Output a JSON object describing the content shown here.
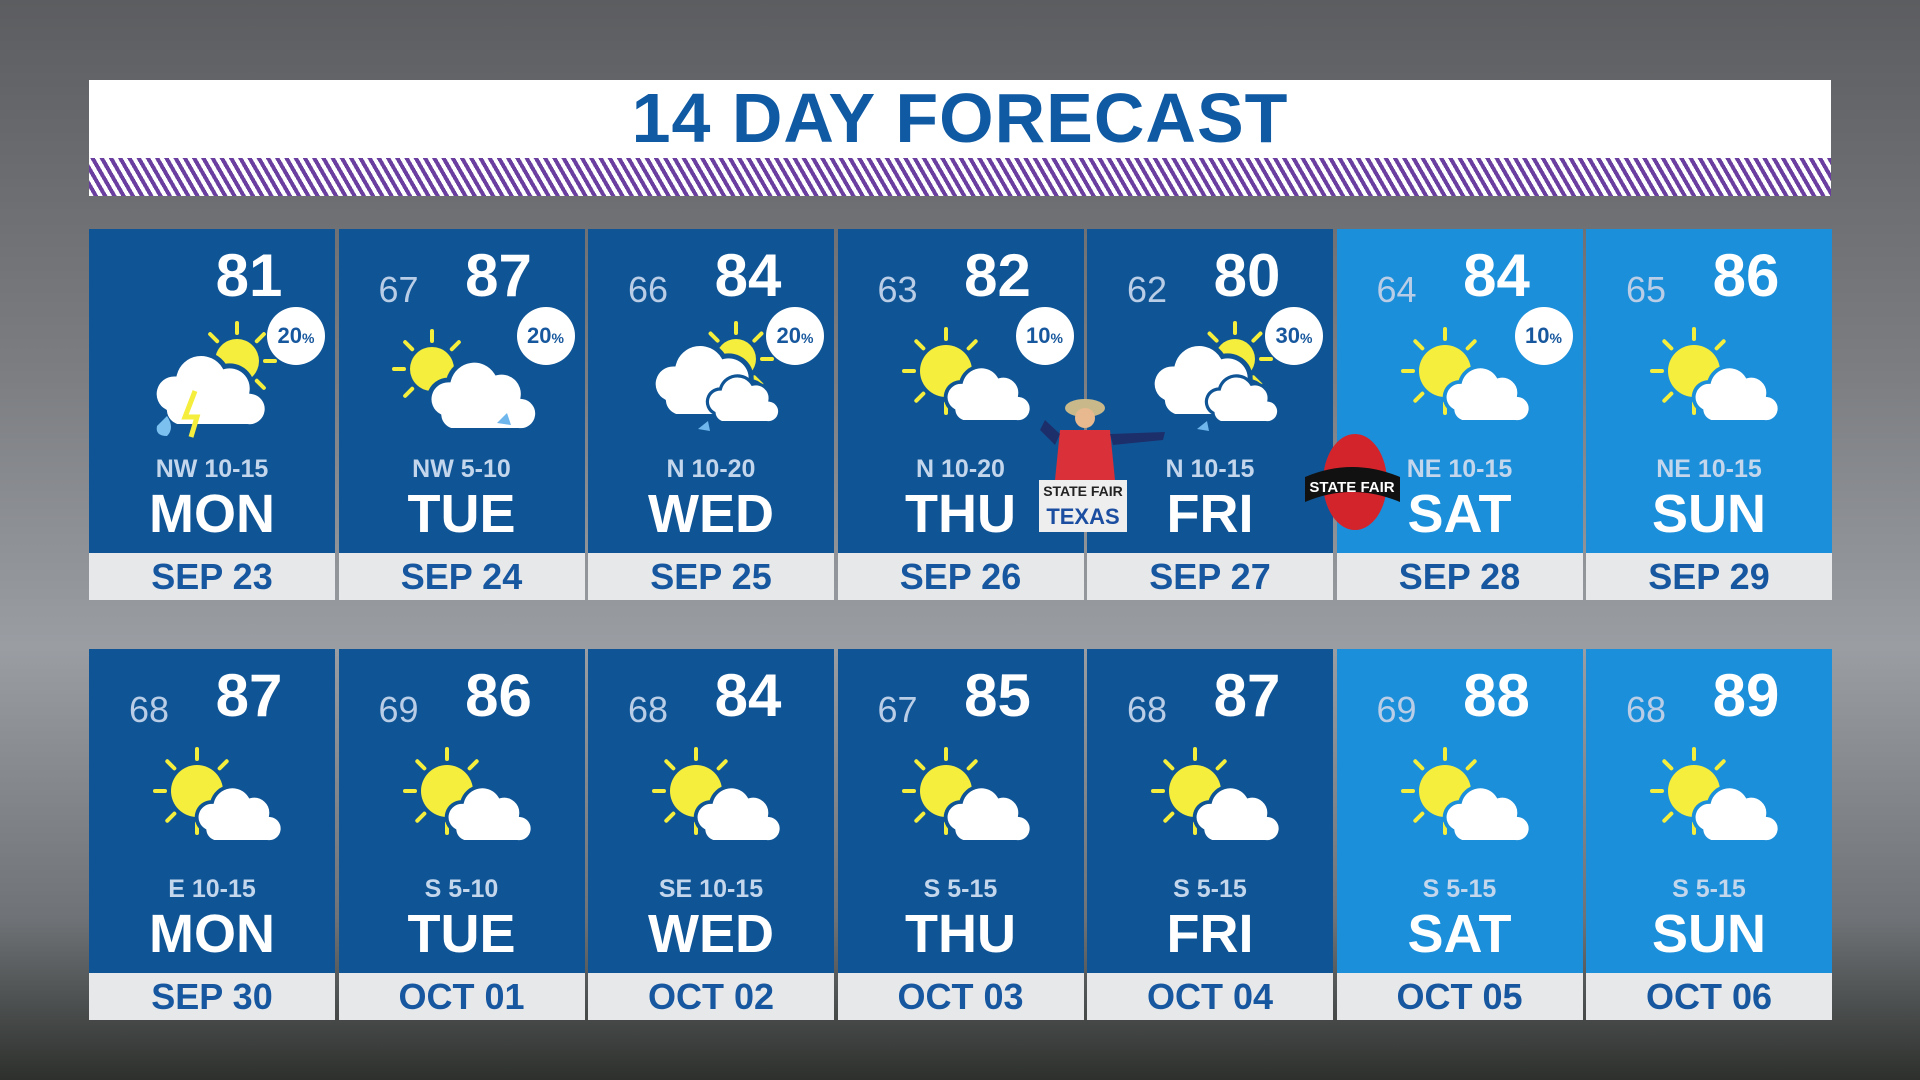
{
  "title": "14 DAY FORECAST",
  "colors": {
    "title": "#0f5aa3",
    "weekday_panel": "#0f5596",
    "weekend_panel": "#1b8fda",
    "date_text": "#1657a0",
    "stripe": "#6a3fa0",
    "sun": "#f5ee3c"
  },
  "logos": {
    "big_tex": "STATE FAIR OF TEXAS",
    "classic": "STATE FAIR CLASSIC"
  },
  "weeks": [
    [
      {
        "hi": "81",
        "lo": "",
        "pop": "20",
        "wind": "NW 10-15",
        "day": "MON",
        "date": "SEP 23",
        "icon": "storm",
        "weekend": false
      },
      {
        "hi": "87",
        "lo": "67",
        "pop": "20",
        "wind": "NW 5-10",
        "day": "TUE",
        "date": "SEP 24",
        "icon": "partly-cloudy-rain",
        "weekend": false
      },
      {
        "hi": "84",
        "lo": "66",
        "pop": "20",
        "wind": "N 10-20",
        "day": "WED",
        "date": "SEP 25",
        "icon": "cloudy-rain",
        "weekend": false
      },
      {
        "hi": "82",
        "lo": "63",
        "pop": "10",
        "wind": "N 10-20",
        "day": "THU",
        "date": "SEP 26",
        "icon": "partly-cloudy",
        "weekend": false
      },
      {
        "hi": "80",
        "lo": "62",
        "pop": "30",
        "wind": "N 10-15",
        "day": "FRI",
        "date": "SEP 27",
        "icon": "cloudy-rain",
        "weekend": false
      },
      {
        "hi": "84",
        "lo": "64",
        "pop": "10",
        "wind": "NE 10-15",
        "day": "SAT",
        "date": "SEP 28",
        "icon": "partly-cloudy",
        "weekend": true
      },
      {
        "hi": "86",
        "lo": "65",
        "pop": "",
        "wind": "NE 10-15",
        "day": "SUN",
        "date": "SEP 29",
        "icon": "partly-cloudy",
        "weekend": true
      }
    ],
    [
      {
        "hi": "87",
        "lo": "68",
        "pop": "",
        "wind": "E 10-15",
        "day": "MON",
        "date": "SEP 30",
        "icon": "partly-cloudy",
        "weekend": false
      },
      {
        "hi": "86",
        "lo": "69",
        "pop": "",
        "wind": "S 5-10",
        "day": "TUE",
        "date": "OCT 01",
        "icon": "partly-cloudy",
        "weekend": false
      },
      {
        "hi": "84",
        "lo": "68",
        "pop": "",
        "wind": "SE 10-15",
        "day": "WED",
        "date": "OCT 02",
        "icon": "partly-cloudy",
        "weekend": false
      },
      {
        "hi": "85",
        "lo": "67",
        "pop": "",
        "wind": "S 5-15",
        "day": "THU",
        "date": "OCT 03",
        "icon": "partly-cloudy",
        "weekend": false
      },
      {
        "hi": "87",
        "lo": "68",
        "pop": "",
        "wind": "S 5-15",
        "day": "FRI",
        "date": "OCT 04",
        "icon": "partly-cloudy",
        "weekend": false
      },
      {
        "hi": "88",
        "lo": "69",
        "pop": "",
        "wind": "S 5-15",
        "day": "SAT",
        "date": "OCT 05",
        "icon": "partly-cloudy",
        "weekend": true
      },
      {
        "hi": "89",
        "lo": "68",
        "pop": "",
        "wind": "S 5-15",
        "day": "SUN",
        "date": "OCT 06",
        "icon": "partly-cloudy",
        "weekend": true
      }
    ]
  ]
}
